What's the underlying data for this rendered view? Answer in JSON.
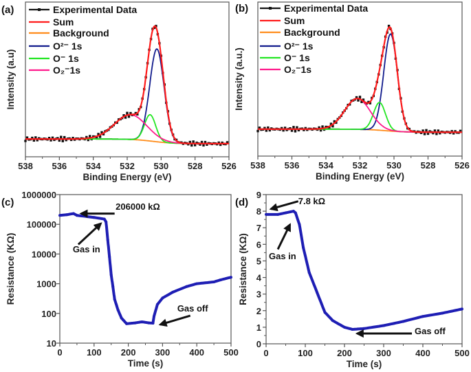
{
  "colors": {
    "experimental": "#111111",
    "sum": "#ff1a1a",
    "background": "#ff8c1a",
    "o2minus": "#101a8c",
    "ominus": "#22e622",
    "o2superoxide": "#ff1a8c",
    "resistance": "#1e1eb4"
  },
  "chart_data": [
    {
      "panel": "(a)",
      "type": "line",
      "xlabel": "Binding Energy (eV)",
      "ylabel": "Intensity (a.u)",
      "xlim": [
        538,
        526
      ],
      "ylim": [
        0,
        1
      ],
      "xticks": [
        538,
        536,
        534,
        532,
        530,
        528,
        526
      ],
      "grid": false,
      "legend_placement": "top-left",
      "legend": [
        "Experimental Data",
        "Sum",
        "Background",
        "O²⁻ 1s",
        "O⁻ 1s",
        "O₂⁻1s"
      ],
      "background": {
        "left": 0.115,
        "right": 0.085,
        "step_center": 530.5
      },
      "components": [
        {
          "name": "O²⁻ 1s",
          "center": 530.25,
          "height": 0.6,
          "sigma": 0.42
        },
        {
          "name": "O⁻ 1s",
          "center": 530.65,
          "height": 0.17,
          "sigma": 0.33
        },
        {
          "name": "O₂⁻1s",
          "center": 531.8,
          "height": 0.16,
          "sigma": 0.95
        }
      ]
    },
    {
      "panel": "(b)",
      "type": "line",
      "xlabel": "Binding Energy (eV)",
      "ylabel": "Intensity (a.u.)",
      "xlim": [
        538,
        526
      ],
      "ylim": [
        0,
        1
      ],
      "xticks": [
        538,
        536,
        534,
        532,
        530,
        528,
        526
      ],
      "grid": false,
      "legend_placement": "top-left",
      "legend": [
        "Experimental Data",
        "Sum",
        "Background",
        "O²⁻ 1s",
        "O⁻ 1s",
        "O₂⁻1s"
      ],
      "background": {
        "left": 0.175,
        "right": 0.155,
        "step_center": 530.5
      },
      "components": [
        {
          "name": "O²⁻ 1s",
          "center": 530.2,
          "height": 0.63,
          "sigma": 0.4
        },
        {
          "name": "O⁻ 1s",
          "center": 530.85,
          "height": 0.18,
          "sigma": 0.35
        },
        {
          "name": "O₂⁻1s",
          "center": 532.15,
          "height": 0.2,
          "sigma": 0.75
        }
      ]
    },
    {
      "panel": "(c)",
      "type": "line",
      "xlabel": "Time (s)",
      "ylabel": "Resistance (KΩ)",
      "xlim": [
        0,
        500
      ],
      "ylim": [
        10,
        1000000
      ],
      "yscale": "log",
      "xticks": [
        0,
        100,
        200,
        300,
        400,
        500
      ],
      "yticks": [
        10,
        100,
        1000,
        10000,
        100000,
        1000000
      ],
      "grid": false,
      "points": [
        [
          0,
          200000
        ],
        [
          20,
          210000
        ],
        [
          40,
          230000
        ],
        [
          50,
          200000
        ],
        [
          100,
          170000
        ],
        [
          130,
          150000
        ],
        [
          135,
          120000
        ],
        [
          140,
          30000
        ],
        [
          145,
          8000
        ],
        [
          150,
          2000
        ],
        [
          155,
          800
        ],
        [
          160,
          300
        ],
        [
          170,
          130
        ],
        [
          180,
          70
        ],
        [
          195,
          45
        ],
        [
          220,
          48
        ],
        [
          240,
          52
        ],
        [
          260,
          48
        ],
        [
          272,
          47
        ],
        [
          275,
          80
        ],
        [
          285,
          200
        ],
        [
          300,
          330
        ],
        [
          330,
          520
        ],
        [
          370,
          800
        ],
        [
          400,
          1000
        ],
        [
          450,
          1150
        ],
        [
          470,
          1350
        ],
        [
          500,
          1650
        ]
      ],
      "annotations": [
        {
          "text": "206000 kΩ",
          "text_at": [
            163,
            310000
          ],
          "arrow_from": [
            160,
            230000
          ],
          "arrow_to": [
            62,
            230000
          ]
        },
        {
          "text": "Gas in",
          "text_at": [
            38,
            11500
          ],
          "arrow_from": [
            54,
            21000
          ],
          "arrow_to": [
            120,
            107000
          ]
        },
        {
          "text": "Gas off",
          "text_at": [
            343,
            116
          ],
          "arrow_from": [
            381,
            84
          ],
          "arrow_to": [
            293,
            42
          ]
        }
      ]
    },
    {
      "panel": "(d)",
      "type": "line",
      "xlabel": "Time (s)",
      "ylabel": "Resistance (KΩ)",
      "xlim": [
        0,
        500
      ],
      "ylim": [
        0,
        9
      ],
      "xticks": [
        0,
        100,
        200,
        300,
        400,
        500
      ],
      "yticks": [
        0,
        1,
        2,
        3,
        4,
        5,
        6,
        7,
        8,
        9
      ],
      "grid": false,
      "points": [
        [
          0,
          7.8
        ],
        [
          30,
          7.8
        ],
        [
          50,
          7.9
        ],
        [
          70,
          8.0
        ],
        [
          75,
          7.9
        ],
        [
          85,
          7.2
        ],
        [
          95,
          5.8
        ],
        [
          110,
          4.3
        ],
        [
          130,
          3.1
        ],
        [
          150,
          1.9
        ],
        [
          170,
          1.4
        ],
        [
          200,
          1.0
        ],
        [
          220,
          0.87
        ],
        [
          250,
          0.92
        ],
        [
          300,
          1.1
        ],
        [
          350,
          1.35
        ],
        [
          400,
          1.65
        ],
        [
          450,
          1.85
        ],
        [
          500,
          2.1
        ]
      ],
      "annotations": [
        {
          "text": "7.8 kΩ",
          "text_at": [
            82,
            8.42
          ],
          "arrow_from": [
            82,
            8.6
          ],
          "arrow_to": [
            12,
            8.13
          ]
        },
        {
          "text": "Gas in",
          "text_at": [
            7,
            5.1
          ],
          "arrow_from": [
            30,
            5.7
          ],
          "arrow_to": [
            61,
            7.2
          ]
        },
        {
          "text": "Gas off",
          "text_at": [
            379,
            0.58
          ],
          "arrow_from": [
            372,
            0.62
          ],
          "arrow_to": [
            232,
            0.62
          ]
        }
      ]
    }
  ]
}
